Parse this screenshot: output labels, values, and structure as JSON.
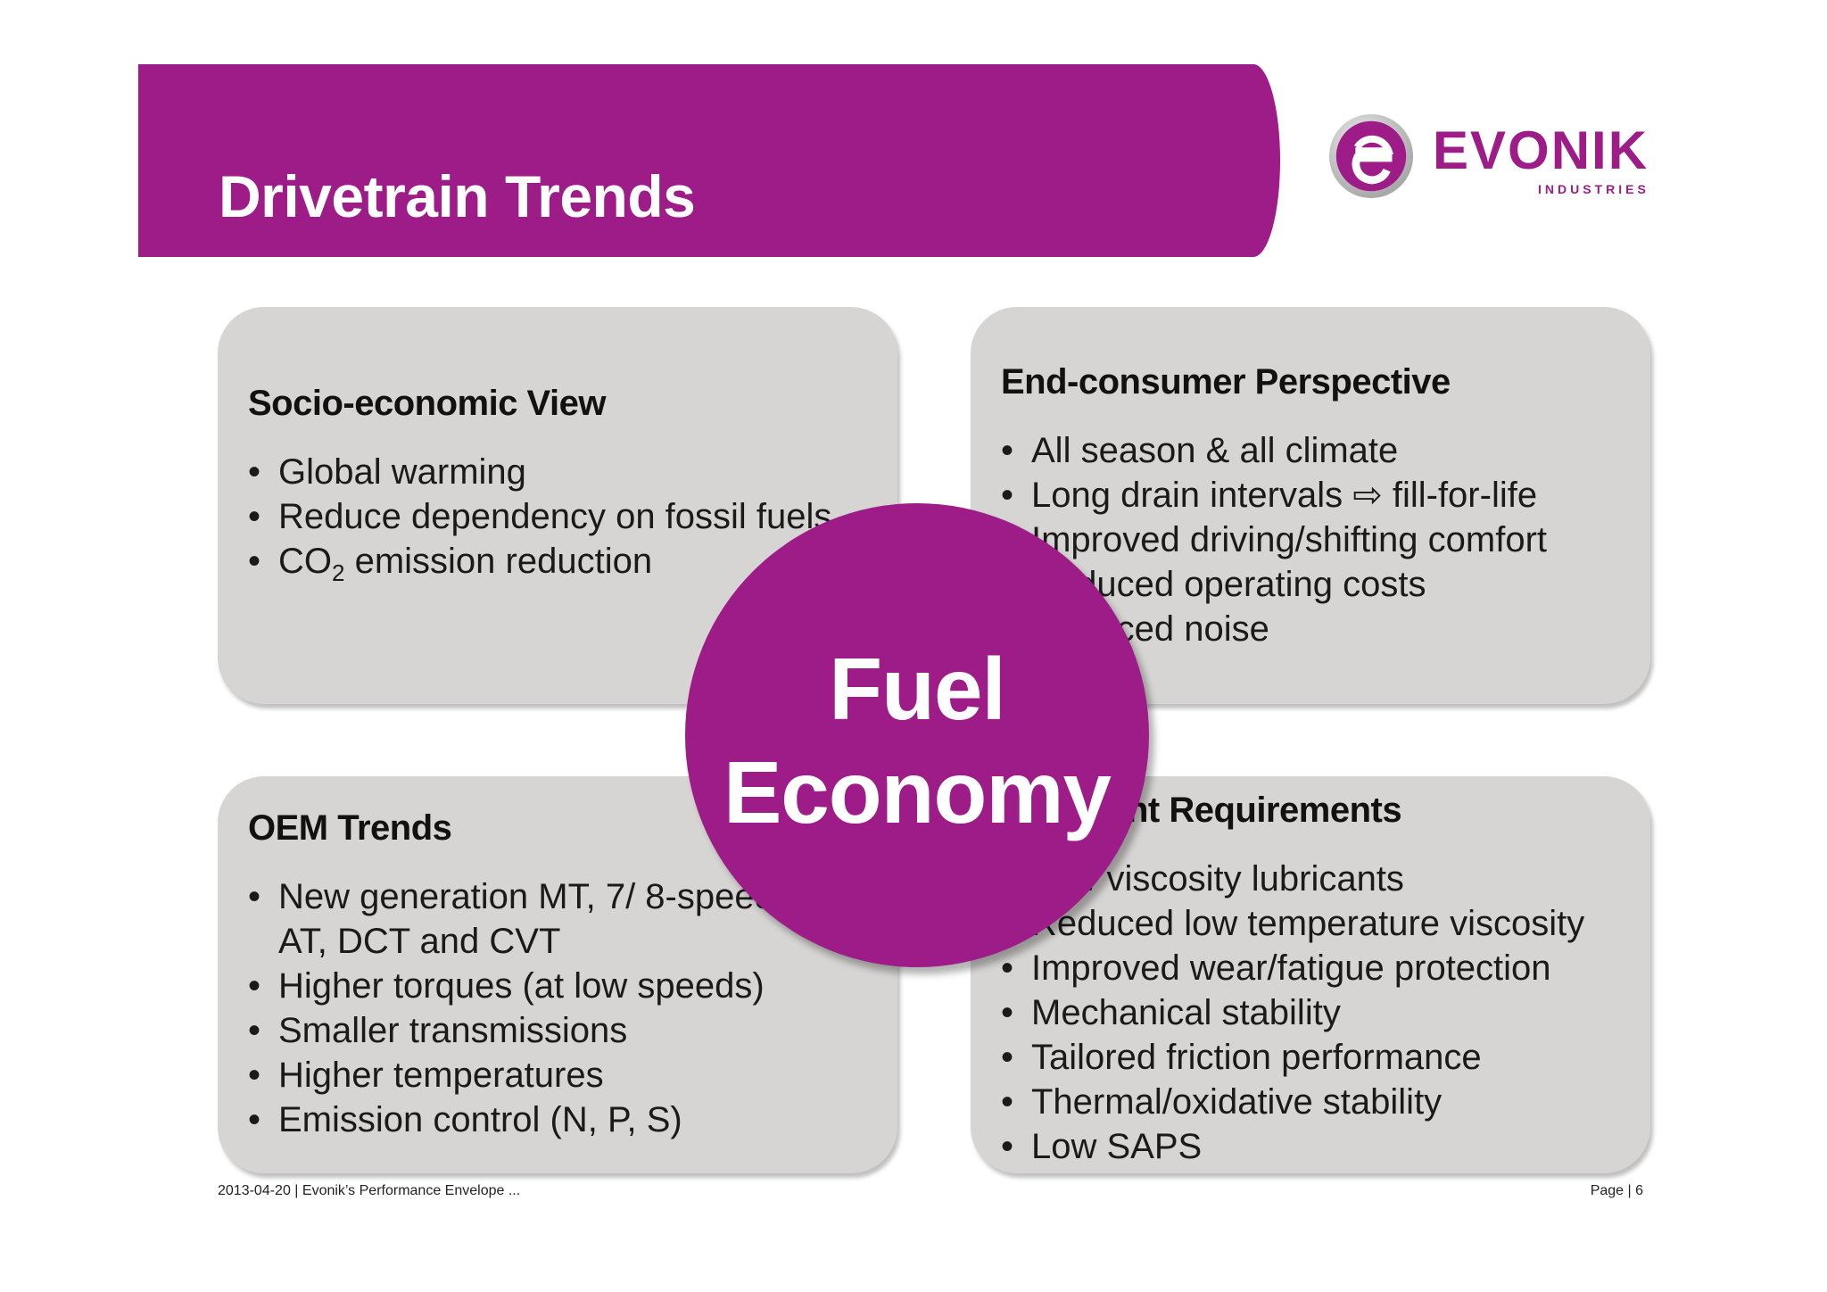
{
  "header": {
    "title": "Drivetrain Trends"
  },
  "logo": {
    "wordmark": "EVONIK",
    "subtitle": "INDUSTRIES"
  },
  "boxes": {
    "socio": {
      "title": "Socio-economic View",
      "items": [
        "Global warming",
        "Reduce dependency on fossil fuels",
        "emission reduction"
      ],
      "co2": "CO",
      "co2_sub": "2"
    },
    "consumer": {
      "title": "End-consumer Perspective",
      "items": [
        "All season & all climate",
        "Long drain intervals ⇨ fill-for-life",
        "Improved driving/shifting comfort",
        "Reduced operating costs",
        "Reduced noise"
      ]
    },
    "oem": {
      "title": "OEM Trends",
      "items": [
        "New generation MT, 7/ 8-speed",
        "AT, DCT and CVT",
        "Higher torques (at low speeds)",
        "Smaller transmissions",
        "Higher temperatures",
        "Emission control (N, P, S)"
      ]
    },
    "lubricant": {
      "title": "Lubricant Requirements",
      "items": [
        "Low viscosity lubricants",
        "Reduced low temperature viscosity",
        "Improved wear/fatigue protection",
        "Mechanical stability",
        "Tailored friction performance",
        "Thermal/oxidative stability",
        "Low SAPS"
      ]
    }
  },
  "center": {
    "line1": "Fuel",
    "line2": "Economy"
  },
  "footer": {
    "left": "2013-04-20 | Evonik’s Performance Envelope ...",
    "right": "Page | 6"
  },
  "colors": {
    "brand": "#9e1c87",
    "box": "#d7d5d4"
  }
}
